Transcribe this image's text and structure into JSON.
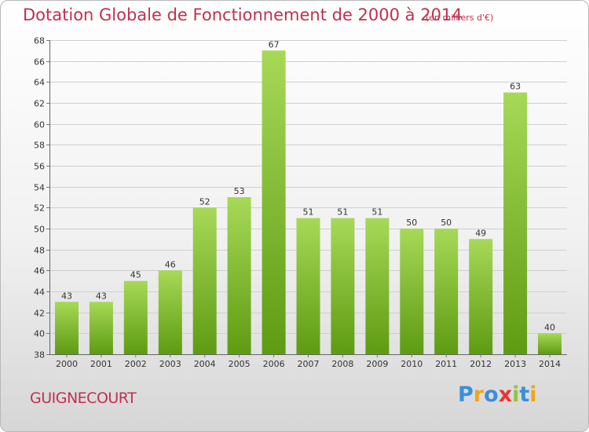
{
  "header": {
    "title": "Dotation Globale de Fonctionnement de 2000 à 2014",
    "subtitle": "(en milliers d'€)"
  },
  "footer": {
    "commune": "GUIGNECOURT",
    "brand": "Proxiti"
  },
  "colors": {
    "title": "#c0304f",
    "bar_light": "#a6d957",
    "bar_dark": "#5e9b12",
    "grid": "#cfcfcf"
  },
  "chart_data": {
    "type": "bar",
    "categories": [
      "2000",
      "2001",
      "2002",
      "2003",
      "2004",
      "2005",
      "2006",
      "2007",
      "2008",
      "2009",
      "2010",
      "2011",
      "2012",
      "2013",
      "2014"
    ],
    "values": [
      43,
      43,
      45,
      46,
      52,
      53,
      67,
      51,
      51,
      51,
      50,
      50,
      49,
      63,
      40
    ],
    "data_labels": [
      "43",
      "43",
      "45",
      "46",
      "52",
      "53",
      "67",
      "51",
      "51",
      "51",
      "50",
      "50",
      "49",
      "63",
      "40"
    ],
    "ylim": [
      38,
      68
    ],
    "yticks": [
      "38",
      "40",
      "42",
      "44",
      "46",
      "48",
      "50",
      "52",
      "54",
      "56",
      "58",
      "60",
      "62",
      "64",
      "66",
      "68"
    ],
    "grid": true,
    "legend": "none"
  }
}
